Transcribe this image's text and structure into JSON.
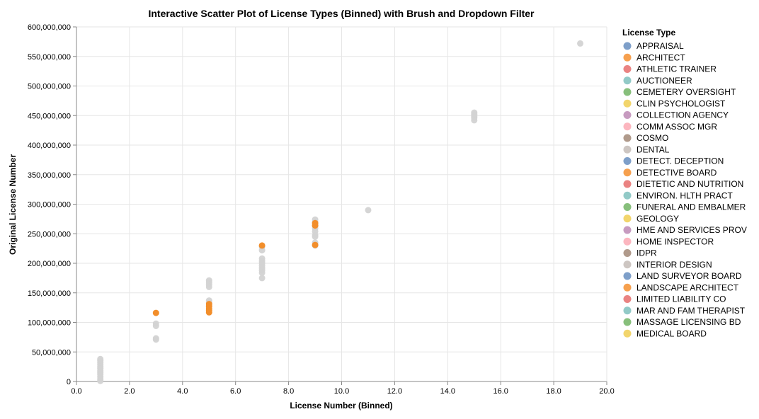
{
  "chart_data": {
    "type": "scatter",
    "title": "Interactive Scatter Plot of License Types (Binned) with Brush and Dropdown Filter",
    "xlabel": "License Number (Binned)",
    "ylabel": "Original License Number",
    "xlim": [
      0,
      20
    ],
    "ylim": [
      0,
      600000000
    ],
    "x_ticks": [
      "0.0",
      "2.0",
      "4.0",
      "6.0",
      "8.0",
      "10.0",
      "12.0",
      "14.0",
      "16.0",
      "18.0",
      "20.0"
    ],
    "y_ticks": [
      "0",
      "50,000,000",
      "100,000,000",
      "150,000,000",
      "200,000,000",
      "250,000,000",
      "300,000,000",
      "350,000,000",
      "400,000,000",
      "450,000,000",
      "500,000,000",
      "550,000,000",
      "600,000,000"
    ],
    "grid": true,
    "legend_title": "License Type",
    "legend_placement": "right",
    "legend": [
      {
        "label": "APPRAISAL",
        "color": "#7e9fc9"
      },
      {
        "label": "ARCHITECT",
        "color": "#f6a04e"
      },
      {
        "label": "ATHLETIC TRAINER",
        "color": "#ea8382"
      },
      {
        "label": "AUCTIONEER",
        "color": "#92cac7"
      },
      {
        "label": "CEMETERY OVERSIGHT",
        "color": "#87bf7b"
      },
      {
        "label": "CLIN PSYCHOLOGIST",
        "color": "#f2d56c"
      },
      {
        "label": "COLLECTION AGENCY",
        "color": "#c79bc0"
      },
      {
        "label": "COMM ASSOC MGR",
        "color": "#fcb6bf"
      },
      {
        "label": "COSMO",
        "color": "#b09a8b"
      },
      {
        "label": "DENTAL",
        "color": "#cdc6c2"
      },
      {
        "label": "DETECT. DECEPTION",
        "color": "#7e9fc9"
      },
      {
        "label": "DETECTIVE BOARD",
        "color": "#f6a04e"
      },
      {
        "label": "DIETETIC AND NUTRITION",
        "color": "#ea8382"
      },
      {
        "label": "ENVIRON. HLTH PRACT",
        "color": "#92cac7"
      },
      {
        "label": "FUNERAL AND EMBALMER",
        "color": "#87bf7b"
      },
      {
        "label": "GEOLOGY",
        "color": "#f2d56c"
      },
      {
        "label": "HME AND SERVICES PROV",
        "color": "#c79bc0"
      },
      {
        "label": "HOME INSPECTOR",
        "color": "#fcb6bf"
      },
      {
        "label": "IDPR",
        "color": "#b09a8b"
      },
      {
        "label": "INTERIOR DESIGN",
        "color": "#cdc6c2"
      },
      {
        "label": "LAND SURVEYOR BOARD",
        "color": "#7e9fc9"
      },
      {
        "label": "LANDSCAPE ARCHITECT",
        "color": "#f6a04e"
      },
      {
        "label": "LIMITED LIABILITY CO",
        "color": "#ea8382"
      },
      {
        "label": "MAR AND FAM THERAPIST",
        "color": "#92cac7"
      },
      {
        "label": "MASSAGE LICENSING BD",
        "color": "#87bf7b"
      },
      {
        "label": "MEDICAL BOARD",
        "color": "#f2d56c"
      }
    ],
    "series": [
      {
        "color": "#d3d3d3",
        "points": [
          [
            0.9,
            38000000
          ],
          [
            0.9,
            35000000
          ],
          [
            0.9,
            32000000
          ],
          [
            0.9,
            29000000
          ],
          [
            0.9,
            25000000
          ],
          [
            0.9,
            22000000
          ],
          [
            0.9,
            18000000
          ],
          [
            0.9,
            15000000
          ],
          [
            0.9,
            12000000
          ],
          [
            0.9,
            8000000
          ],
          [
            0.9,
            4000000
          ],
          [
            0.9,
            1000000
          ],
          [
            3,
            98000000
          ],
          [
            3,
            94000000
          ],
          [
            3,
            73000000
          ],
          [
            3,
            71000000
          ],
          [
            5,
            171000000
          ],
          [
            5,
            168000000
          ],
          [
            5,
            164000000
          ],
          [
            5,
            160000000
          ],
          [
            5,
            137000000
          ],
          [
            5,
            134000000
          ],
          [
            5,
            128000000
          ],
          [
            7,
            228000000
          ],
          [
            7,
            222000000
          ],
          [
            7,
            208000000
          ],
          [
            7,
            204000000
          ],
          [
            7,
            200000000
          ],
          [
            7,
            196000000
          ],
          [
            7,
            192000000
          ],
          [
            7,
            188000000
          ],
          [
            7,
            184000000
          ],
          [
            7,
            175000000
          ],
          [
            9,
            274000000
          ],
          [
            9,
            270000000
          ],
          [
            9,
            263000000
          ],
          [
            9,
            259000000
          ],
          [
            9,
            254000000
          ],
          [
            9,
            248000000
          ],
          [
            9,
            245000000
          ],
          [
            9,
            235000000
          ],
          [
            9,
            230000000
          ],
          [
            11,
            290000000
          ],
          [
            15,
            455000000
          ],
          [
            15,
            452000000
          ],
          [
            15,
            449000000
          ],
          [
            15,
            446000000
          ],
          [
            15,
            442000000
          ],
          [
            19,
            572000000
          ]
        ]
      },
      {
        "color": "#f28e2b",
        "points": [
          [
            3,
            116000000
          ],
          [
            5,
            131000000
          ],
          [
            5,
            127000000
          ],
          [
            5,
            123000000
          ],
          [
            5,
            120000000
          ],
          [
            5,
            117000000
          ],
          [
            7,
            230000000
          ],
          [
            9,
            268000000
          ],
          [
            9,
            264000000
          ],
          [
            9,
            231000000
          ]
        ]
      }
    ]
  }
}
